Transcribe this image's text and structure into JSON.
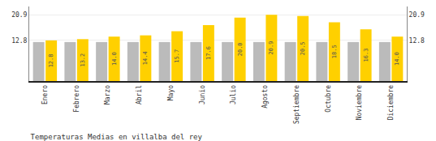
{
  "chart_data": {
    "type": "bar",
    "title": "Temperaturas Medias en villalba del rey",
    "categories": [
      "Enero",
      "Febrero",
      "Marzo",
      "Abril",
      "Mayo",
      "Junio",
      "Julio",
      "Agosto",
      "Septiembre",
      "Octubre",
      "Noviembre",
      "Diciembre"
    ],
    "series": [
      {
        "color": "#BBBBBB",
        "values": [
          12.3,
          12.3,
          12.3,
          12.3,
          12.3,
          12.3,
          12.3,
          12.3,
          12.3,
          12.3,
          12.3,
          12.3
        ]
      },
      {
        "color": "#FFD000",
        "values": [
          12.8,
          13.2,
          14.0,
          14.4,
          15.7,
          17.6,
          20.0,
          20.9,
          20.5,
          18.5,
          16.3,
          14.0
        ],
        "data_labels": true,
        "value_labels": [
          "12.8",
          "13.2",
          "14.0",
          "14.4",
          "15.7",
          "17.6",
          "20.0",
          "20.9",
          "20.5",
          "18.5",
          "16.3",
          "14.0"
        ]
      }
    ],
    "ylim": [
      0.0,
      23.5
    ],
    "yticks": [
      12.8,
      20.9
    ],
    "y2lim": [
      0.0,
      23.5
    ],
    "y2ticks": [
      12.8,
      20.9
    ],
    "grid": true
  }
}
